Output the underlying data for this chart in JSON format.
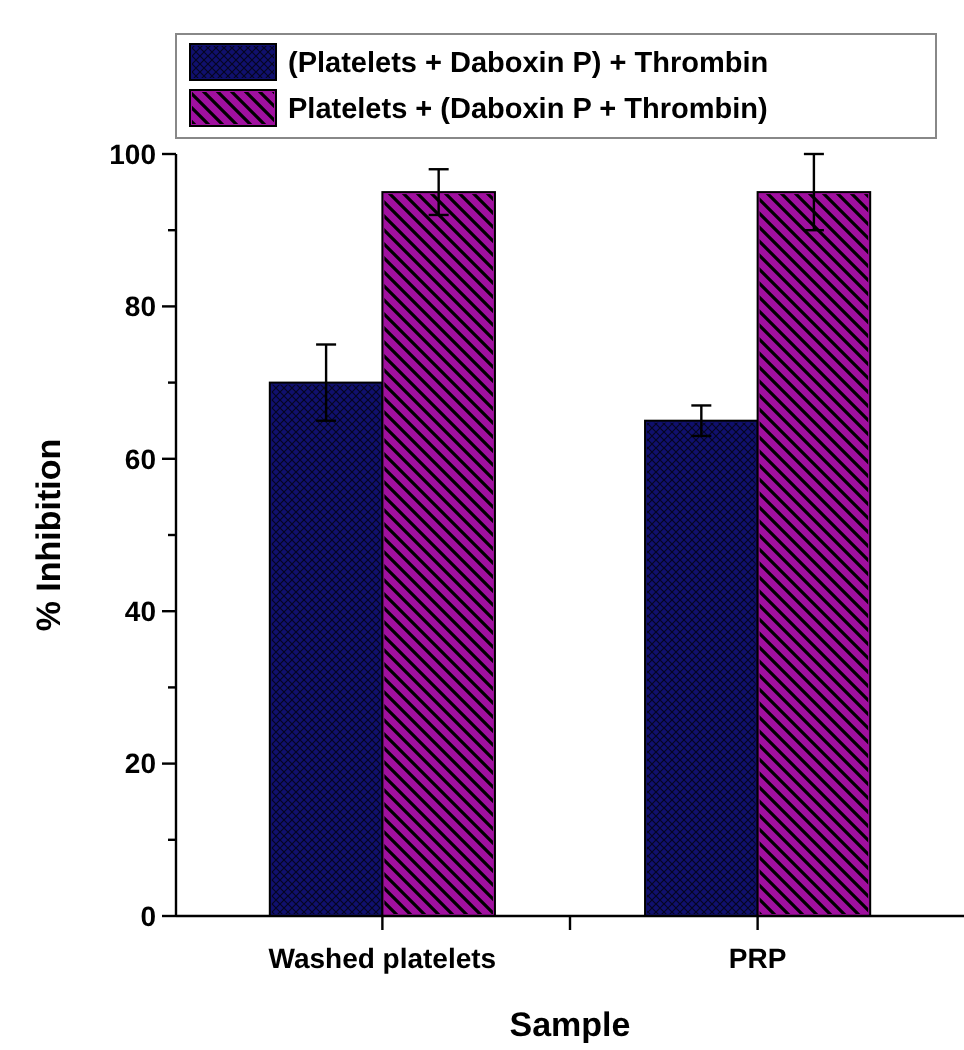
{
  "chart_data": {
    "type": "bar",
    "xlabel": "Sample",
    "ylabel": "% Inhibition",
    "categories": [
      "Washed platelets",
      "PRP"
    ],
    "series": [
      {
        "name": "(Platelets + Daboxin P) + Thrombin",
        "color": "#10106e",
        "values": [
          70,
          65
        ],
        "errors": [
          5,
          2
        ]
      },
      {
        "name": "Platelets + (Daboxin P + Thrombin)",
        "color": "#a0109f",
        "values": [
          95,
          95
        ],
        "errors": [
          3,
          5
        ]
      }
    ],
    "ylim": [
      0,
      100
    ],
    "yticks": [
      0,
      {
        "value": 10,
        "label": null
      },
      20,
      {
        "value": 30,
        "label": null
      },
      40,
      {
        "value": 50,
        "label": null
      },
      60,
      {
        "value": 70,
        "label": null
      },
      80,
      {
        "value": 90,
        "label": null
      },
      100
    ],
    "legend": "top",
    "grid": false
  }
}
